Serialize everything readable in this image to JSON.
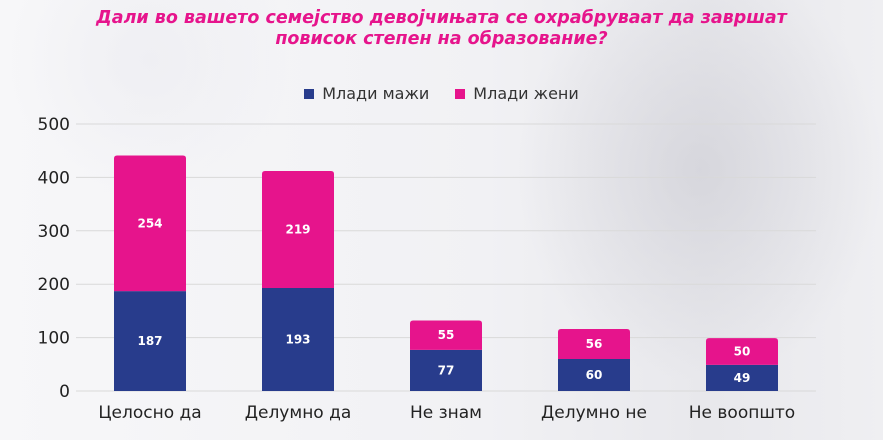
{
  "title_lines": [
    "Дали во вашето семејство девојчињата се охрабруваат да завршат",
    "повисок степен на образование?"
  ],
  "colors": {
    "title": "#e6148c",
    "series_men": "#283c8c",
    "series_women": "#e6148c",
    "gridline": "#d9d9d9"
  },
  "chart_data": {
    "type": "bar",
    "stacked": true,
    "title": "Дали во вашето семејство девојчињата се охрабруваат да завршат повисок степен на образование?",
    "categories": [
      "Целосно да",
      "Делумно да",
      "Не знам",
      "Делумно не",
      "Не воопшто"
    ],
    "series": [
      {
        "name": "Млади мажи",
        "values": [
          187,
          193,
          77,
          60,
          49
        ]
      },
      {
        "name": "Млади жени",
        "values": [
          254,
          219,
          55,
          56,
          50
        ]
      }
    ],
    "ylim": [
      0,
      500
    ],
    "yticks": [
      0,
      100,
      200,
      300,
      400,
      500
    ],
    "xlabel": "",
    "ylabel": "",
    "grid": true,
    "legend_position": "top-center"
  }
}
